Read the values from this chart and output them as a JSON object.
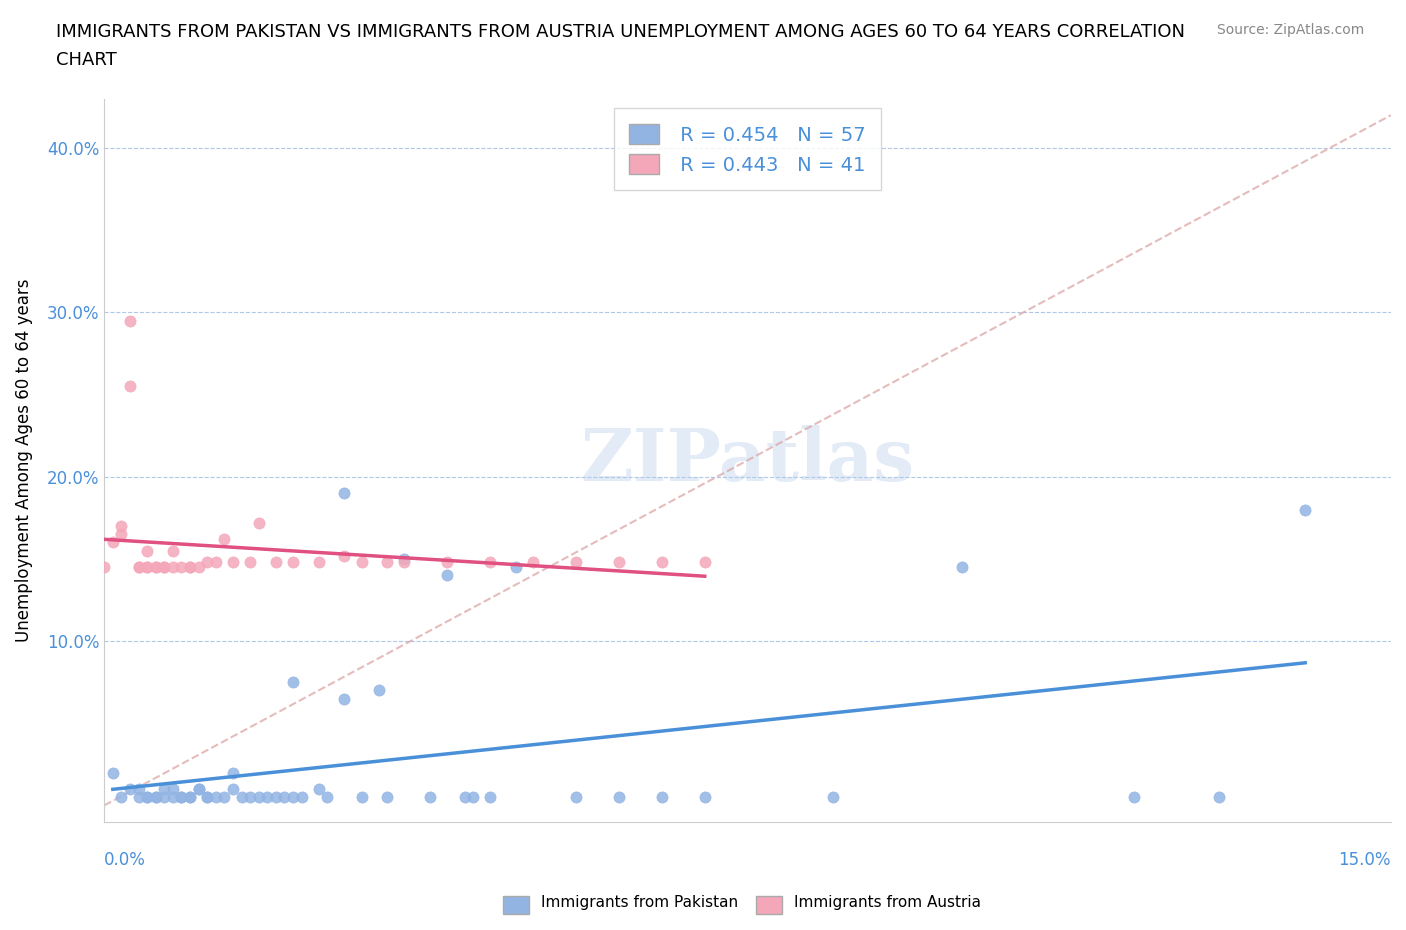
{
  "title_line1": "IMMIGRANTS FROM PAKISTAN VS IMMIGRANTS FROM AUSTRIA UNEMPLOYMENT AMONG AGES 60 TO 64 YEARS CORRELATION",
  "title_line2": "CHART",
  "source": "Source: ZipAtlas.com",
  "ylabel": "Unemployment Among Ages 60 to 64 years",
  "xlim": [
    0.0,
    0.15
  ],
  "ylim": [
    -0.01,
    0.43
  ],
  "pakistan_R": 0.454,
  "pakistan_N": 57,
  "austria_R": 0.443,
  "austria_N": 41,
  "pakistan_color": "#92b4e3",
  "austria_color": "#f4a7b9",
  "pakistan_line_color": "#4a90d9",
  "austria_line_color": "#e05080",
  "ref_line_color": "#d9a0a0",
  "watermark_color": "#d0dff0",
  "pak_x": [
    0.001,
    0.002,
    0.003,
    0.004,
    0.004,
    0.005,
    0.005,
    0.006,
    0.006,
    0.007,
    0.007,
    0.008,
    0.008,
    0.009,
    0.009,
    0.01,
    0.01,
    0.011,
    0.011,
    0.012,
    0.012,
    0.013,
    0.014,
    0.015,
    0.015,
    0.016,
    0.017,
    0.018,
    0.019,
    0.02,
    0.021,
    0.022,
    0.023,
    0.025,
    0.026,
    0.028,
    0.03,
    0.032,
    0.033,
    0.035,
    0.038,
    0.04,
    0.042,
    0.043,
    0.045,
    0.048,
    0.055,
    0.06,
    0.065,
    0.07,
    0.085,
    0.1,
    0.12,
    0.13,
    0.14,
    0.022,
    0.028
  ],
  "pak_y": [
    0.02,
    0.005,
    0.01,
    0.005,
    0.01,
    0.005,
    0.005,
    0.005,
    0.005,
    0.005,
    0.01,
    0.005,
    0.01,
    0.005,
    0.005,
    0.005,
    0.005,
    0.01,
    0.01,
    0.005,
    0.005,
    0.005,
    0.005,
    0.01,
    0.02,
    0.005,
    0.005,
    0.005,
    0.005,
    0.005,
    0.005,
    0.005,
    0.005,
    0.01,
    0.005,
    0.19,
    0.005,
    0.07,
    0.005,
    0.15,
    0.005,
    0.14,
    0.005,
    0.005,
    0.005,
    0.145,
    0.005,
    0.005,
    0.005,
    0.005,
    0.005,
    0.145,
    0.005,
    0.005,
    0.18,
    0.075,
    0.065
  ],
  "aut_x": [
    0.0,
    0.001,
    0.002,
    0.002,
    0.003,
    0.003,
    0.004,
    0.004,
    0.005,
    0.005,
    0.005,
    0.006,
    0.006,
    0.007,
    0.007,
    0.008,
    0.008,
    0.009,
    0.01,
    0.01,
    0.011,
    0.012,
    0.013,
    0.014,
    0.015,
    0.017,
    0.018,
    0.02,
    0.022,
    0.025,
    0.028,
    0.03,
    0.033,
    0.035,
    0.04,
    0.045,
    0.05,
    0.055,
    0.06,
    0.065,
    0.07
  ],
  "aut_y": [
    0.145,
    0.16,
    0.165,
    0.17,
    0.255,
    0.295,
    0.145,
    0.145,
    0.145,
    0.155,
    0.145,
    0.145,
    0.145,
    0.145,
    0.145,
    0.145,
    0.155,
    0.145,
    0.145,
    0.145,
    0.145,
    0.148,
    0.148,
    0.162,
    0.148,
    0.148,
    0.172,
    0.148,
    0.148,
    0.148,
    0.152,
    0.148,
    0.148,
    0.148,
    0.148,
    0.148,
    0.148,
    0.148,
    0.148,
    0.148,
    0.148
  ]
}
